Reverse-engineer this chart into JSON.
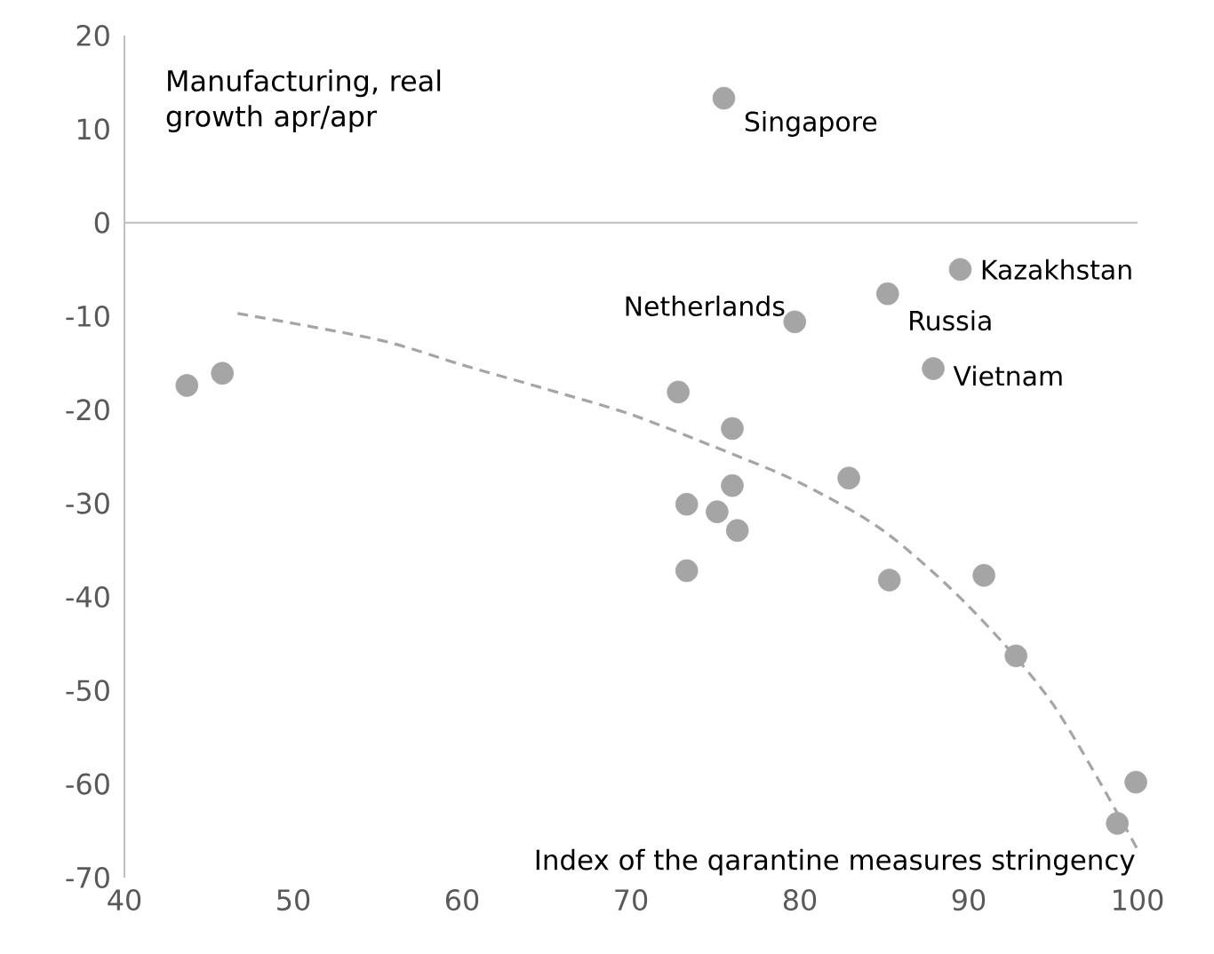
{
  "chart_data": {
    "type": "scatter",
    "xlabel": "Index of the qarantine measures stringency",
    "ylabel": "Manufacturing, real growth apr/apr",
    "xlim": [
      40,
      100
    ],
    "ylim": [
      -70,
      20
    ],
    "xticks": [
      40,
      50,
      60,
      70,
      80,
      90,
      100
    ],
    "yticks": [
      -70,
      -60,
      -50,
      -40,
      -30,
      -20,
      -10,
      0,
      10,
      20
    ],
    "ref_lines": [
      {
        "axis": "y",
        "value": 0,
        "color": "#bfbfbf"
      }
    ],
    "series": [
      {
        "color": "#a5a5a5",
        "marker": "circle",
        "x": [
          75.5,
          89.5,
          85.2,
          79.7,
          87.9,
          43.7,
          45.8,
          72.8,
          76.0,
          76.0,
          73.3,
          75.1,
          76.3,
          73.3,
          82.9,
          85.3,
          90.9,
          92.8,
          99.9,
          98.8
        ],
        "values": [
          13.3,
          -5.0,
          -7.6,
          -10.6,
          -15.6,
          -17.4,
          -16.1,
          -18.1,
          -22.0,
          -28.1,
          -30.1,
          -30.9,
          -32.9,
          -37.2,
          -27.3,
          -38.2,
          -37.7,
          -46.3,
          -59.8,
          -64.2
        ]
      },
      {
        "type": "line",
        "color": "#a5a5a5",
        "line_style": "dashed",
        "marker": "none",
        "x": [
          46.7,
          55,
          60,
          65,
          70,
          75,
          80,
          85,
          90,
          95,
          100
        ],
        "values": [
          -9.7,
          -12.5,
          -15.2,
          -17.8,
          -20.5,
          -24,
          -27.8,
          -33,
          -41,
          -51.5,
          -67
        ]
      }
    ],
    "annotations": [
      {
        "text": "Singapore",
        "x": 75.5,
        "y": 13.3
      },
      {
        "text": "Kazakhstan",
        "x": 89.5,
        "y": -5.0
      },
      {
        "text": "Russia",
        "x": 85.2,
        "y": -7.6
      },
      {
        "text": "Netherlands",
        "x": 79.7,
        "y": -10.6
      },
      {
        "text": "Vietnam",
        "x": 87.9,
        "y": -15.6
      }
    ]
  }
}
